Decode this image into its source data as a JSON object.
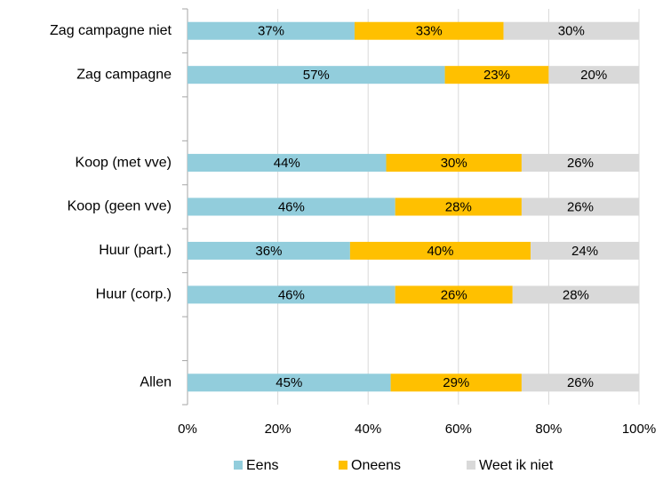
{
  "chart_data": {
    "type": "stacked-bar-horizontal",
    "categories": [
      "Zag campagne niet",
      "Zag campagne",
      null,
      "Koop (met vve)",
      "Koop (geen vve)",
      "Huur (part.)",
      "Huur (corp.)",
      null,
      "Allen"
    ],
    "series": [
      {
        "name": "Eens",
        "color": "#92cddc",
        "values": [
          37,
          57,
          null,
          44,
          46,
          36,
          46,
          null,
          45
        ],
        "value_labels": [
          "37%",
          "57%",
          null,
          "44%",
          "46%",
          "36%",
          "46%",
          null,
          "45%"
        ]
      },
      {
        "name": "Oneens",
        "color": "#ffc000",
        "values": [
          33,
          23,
          null,
          30,
          28,
          40,
          26,
          null,
          29
        ],
        "value_labels": [
          "33%",
          "23%",
          null,
          "30%",
          "28%",
          "40%",
          "26%",
          null,
          "29%"
        ]
      },
      {
        "name": "Weet ik niet",
        "color": "#d9d9d9",
        "values": [
          30,
          20,
          null,
          26,
          26,
          24,
          28,
          null,
          26
        ],
        "value_labels": [
          "30%",
          "20%",
          null,
          "26%",
          "26%",
          "24%",
          "28%",
          null,
          "26%"
        ]
      }
    ],
    "xlim": [
      0,
      100
    ],
    "xticks": [
      {
        "value": 0,
        "label": "0%"
      },
      {
        "value": 20,
        "label": "20%"
      },
      {
        "value": 40,
        "label": "40%"
      },
      {
        "value": 60,
        "label": "60%"
      },
      {
        "value": 80,
        "label": "80%"
      },
      {
        "value": 100,
        "label": "100%"
      }
    ],
    "grid": true,
    "legend": "bottom"
  }
}
